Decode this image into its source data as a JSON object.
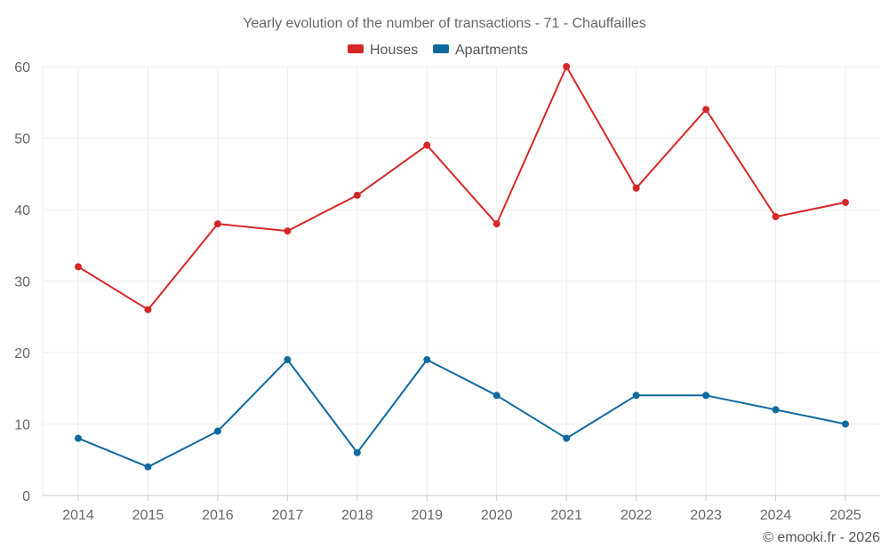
{
  "chart_data": {
    "type": "line",
    "title": "Yearly evolution of the number of transactions - 71 - Chauffailles",
    "xlabel": "",
    "ylabel": "",
    "categories": [
      "2014",
      "2015",
      "2016",
      "2017",
      "2018",
      "2019",
      "2020",
      "2021",
      "2022",
      "2023",
      "2024",
      "2025"
    ],
    "ylim": [
      0,
      60
    ],
    "yticks": [
      "0",
      "10",
      "20",
      "30",
      "40",
      "50",
      "60"
    ],
    "grid": true,
    "legend_position": "top-center",
    "series": [
      {
        "name": "Houses",
        "color": "#d62728",
        "values": [
          32,
          26,
          38,
          37,
          42,
          49,
          38,
          60,
          43,
          54,
          39,
          41
        ]
      },
      {
        "name": "Apartments",
        "color": "#0e6a9e",
        "values": [
          8,
          4,
          9,
          19,
          6,
          19,
          14,
          8,
          14,
          14,
          12,
          10
        ]
      }
    ]
  },
  "credit": "© emooki.fr - 2026"
}
